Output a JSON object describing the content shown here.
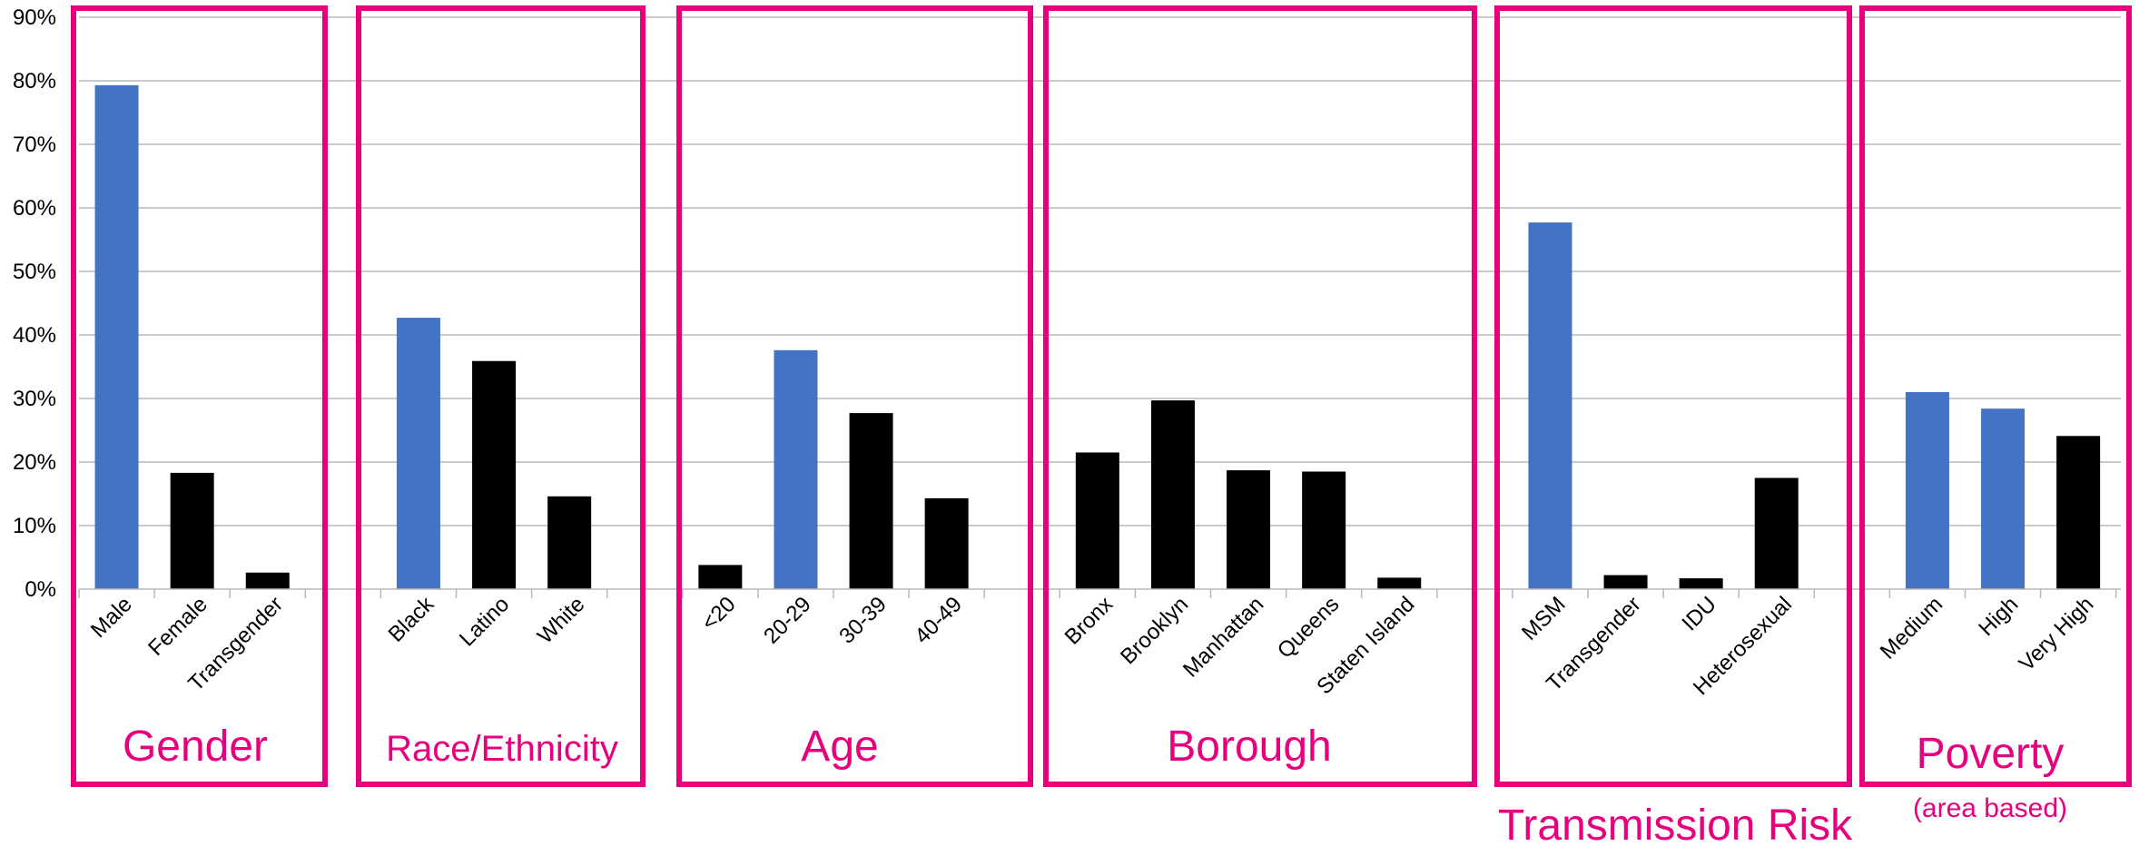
{
  "chart_data": {
    "type": "bar",
    "ylim": [
      0,
      0.9
    ],
    "yticks": [
      "0%",
      "10%",
      "20%",
      "30%",
      "40%",
      "50%",
      "60%",
      "70%",
      "80%",
      "90%"
    ],
    "grid": true,
    "highlight_color": "#4472c4",
    "default_color": "#000000",
    "group_border_color": "#e6007e",
    "categories": [
      "Male",
      "Female",
      "Transgender",
      "Black",
      "Latino",
      "White",
      "<20",
      "20-29",
      "30-39",
      "40-49",
      "Bronx",
      "Brooklyn",
      "Manhattan",
      "Queens",
      "Staten Island",
      "MSM",
      "Transgender",
      "IDU",
      "Heterosexual",
      "Medium",
      "High",
      "Very High"
    ],
    "values": [
      0.793,
      0.183,
      0.026,
      0.427,
      0.359,
      0.146,
      0.038,
      0.376,
      0.277,
      0.143,
      0.215,
      0.297,
      0.187,
      0.185,
      0.018,
      0.577,
      0.022,
      0.017,
      0.175,
      0.31,
      0.284,
      0.241
    ],
    "highlighted": [
      true,
      false,
      false,
      true,
      false,
      false,
      false,
      true,
      false,
      false,
      false,
      false,
      false,
      false,
      false,
      true,
      false,
      false,
      false,
      true,
      true,
      false
    ],
    "groups": [
      {
        "label": "Gender",
        "subtitle": ""
      },
      {
        "label": "Race/Ethnicity",
        "subtitle": ""
      },
      {
        "label": "Age",
        "subtitle": ""
      },
      {
        "label": "Borough",
        "subtitle": ""
      },
      {
        "label": "Transmission Risk",
        "subtitle": ""
      },
      {
        "label": "Poverty",
        "subtitle": "(area based)"
      }
    ]
  }
}
